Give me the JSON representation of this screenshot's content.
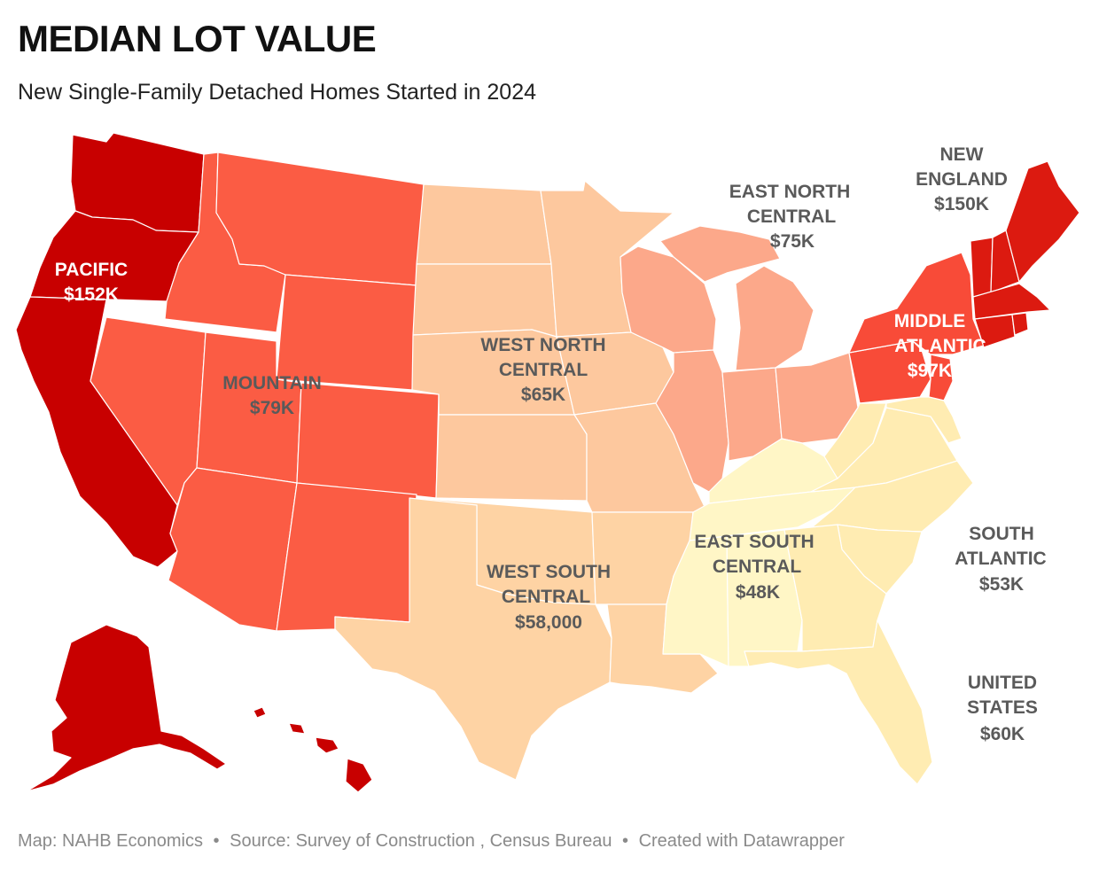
{
  "title": "MEDIAN LOT VALUE",
  "subtitle": "New Single-Family Detached Homes Started in 2024",
  "footer": {
    "map_credit": "Map: NAHB Economics",
    "source": "Source: Survey of Construction , Census Bureau",
    "created_with": "Created with Datawrapper"
  },
  "colors": {
    "pacific": "#c80000",
    "new_england": "#dc1a10",
    "mountain": "#fb5c44",
    "middle_atlantic": "#f84b38",
    "east_north_central": "#fca88a",
    "west_north_central": "#fdc89e",
    "west_south_central": "#fed3a4",
    "south_atlantic": "#ffecb2",
    "east_south_central": "#fff6c6",
    "border": "#ffffff"
  },
  "regions": [
    {
      "id": "pacific",
      "name": "PACIFIC",
      "value": "$152K",
      "text": "light"
    },
    {
      "id": "mountain",
      "name": "MOUNTAIN",
      "value": "$79K",
      "text": "dark"
    },
    {
      "id": "west_north_central",
      "name_line1": "WEST NORTH",
      "name_line2": "CENTRAL",
      "value": "$65K",
      "text": "dark"
    },
    {
      "id": "east_north_central",
      "name_line1": "EAST NORTH",
      "name_line2": "CENTRAL",
      "value": "$75K",
      "text": "dark"
    },
    {
      "id": "new_england",
      "name_line1": "NEW",
      "name_line2": "ENGLAND",
      "value": "$150K",
      "text": "dark"
    },
    {
      "id": "middle_atlantic",
      "name_line1": "MIDDLE",
      "name_line2": "ATLANTIC",
      "value": "$97K",
      "text": "light"
    },
    {
      "id": "west_south_central",
      "name_line1": "WEST SOUTH",
      "name_line2": "CENTRAL",
      "value": "$58,000",
      "text": "dark"
    },
    {
      "id": "east_south_central",
      "name_line1": "EAST SOUTH",
      "name_line2": "CENTRAL",
      "value": "$48K",
      "text": "dark"
    },
    {
      "id": "south_atlantic",
      "name_line1": "SOUTH",
      "name_line2": "ATLANTIC",
      "value": "$53K",
      "text": "dark"
    },
    {
      "id": "united_states",
      "name_line1": "UNITED",
      "name_line2": "STATES",
      "value": "$60K",
      "text": "dark"
    }
  ]
}
